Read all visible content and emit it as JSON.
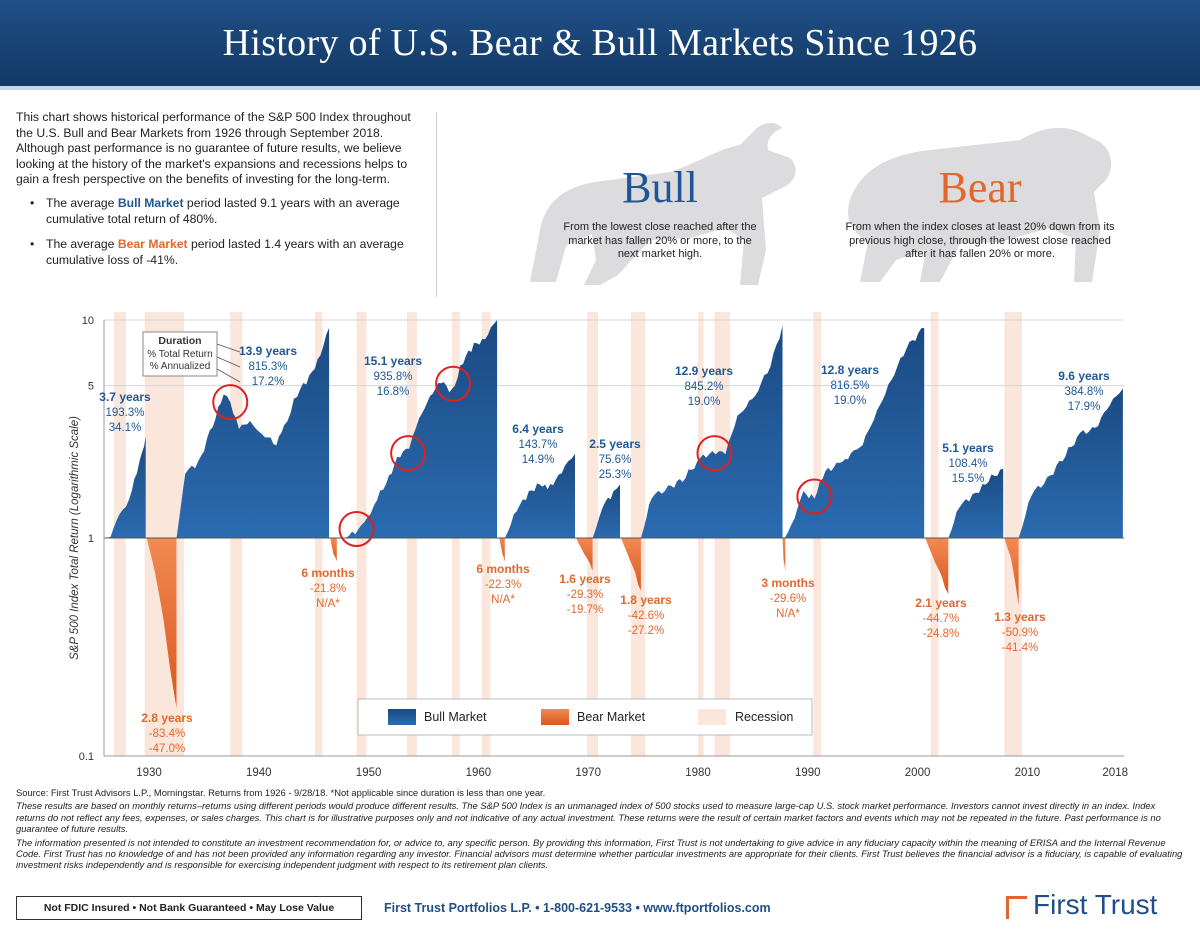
{
  "title": "History of U.S. Bear & Bull Markets Since 1926",
  "intro": {
    "paragraph": "This chart shows historical performance of the S&P 500 Index throughout the U.S. Bull and Bear Markets from 1926 through September 2018. Although past performance is no guarantee of future results, we believe looking at the history of the market's expansions and recessions helps to gain a fresh perspective on the benefits of investing for the long-term.",
    "bull_pre": "The average ",
    "bull_word": "Bull Market",
    "bull_post": " period lasted 9.1 years with an average cumulative total return of 480%.",
    "bear_pre": "The average ",
    "bear_word": "Bear Market",
    "bear_post": " period lasted 1.4 years with an average cumulative loss of -41%."
  },
  "bull_def": {
    "title": "Bull",
    "text": "From the lowest close reached after the market has fallen 20% or more, to the next market high."
  },
  "bear_def": {
    "title": "Bear",
    "text": "From when the index closes at least 20% down from its previous high close, through the lowest close reached after it has fallen 20% or more."
  },
  "colors": {
    "bull": "#1f5795",
    "bear": "#e2672d",
    "recession": "#fbe6dc",
    "header": "#1a4577",
    "grid": "#d6d6d6"
  },
  "chart_data": {
    "type": "area",
    "ylabel": "S&P 500 Index Total Return (Logarithmic Scale)",
    "yscale": "log",
    "yticks": [
      {
        "v": 10,
        "label": "10"
      },
      {
        "v": 5,
        "label": "5"
      },
      {
        "v": 1,
        "label": "1"
      },
      {
        "v": 0.1,
        "label": "0.1"
      }
    ],
    "xlim": [
      1925.9,
      2018.8
    ],
    "ylim": [
      0.1,
      10
    ],
    "xticks": [
      {
        "v": 1930,
        "label": "1930"
      },
      {
        "v": 1940,
        "label": "1940"
      },
      {
        "v": 1950,
        "label": "1950"
      },
      {
        "v": 1960,
        "label": "1960"
      },
      {
        "v": 1970,
        "label": "1970"
      },
      {
        "v": 1980,
        "label": "1980"
      },
      {
        "v": 1990,
        "label": "1990"
      },
      {
        "v": 2000,
        "label": "2000"
      },
      {
        "v": 2010,
        "label": "2010"
      },
      {
        "v": 2018,
        "label": "2018"
      }
    ],
    "recessions": [
      [
        1926.8,
        1927.9
      ],
      [
        1929.6,
        1933.2
      ],
      [
        1937.4,
        1938.5
      ],
      [
        1945.1,
        1945.8
      ],
      [
        1948.9,
        1949.8
      ],
      [
        1953.5,
        1954.4
      ],
      [
        1957.6,
        1958.3
      ],
      [
        1960.3,
        1961.1
      ],
      [
        1969.9,
        1970.9
      ],
      [
        1973.9,
        1975.2
      ],
      [
        1980.0,
        1980.5
      ],
      [
        1981.5,
        1982.9
      ],
      [
        1990.5,
        1991.2
      ],
      [
        2001.2,
        2001.9
      ],
      [
        2007.9,
        2009.5
      ]
    ],
    "key_label": "Duration",
    "key_lines": [
      "% Total Return",
      "% Annualized"
    ],
    "legend": {
      "bull": "Bull Market",
      "bear": "Bear Market",
      "recession": "Recession"
    },
    "bull_markets": [
      {
        "duration": "3.7 years",
        "total": "193.3%",
        "annualized": "34.1%",
        "points": [
          [
            1926.0,
            1.0
          ],
          [
            1926.5,
            1.03
          ],
          [
            1927.3,
            1.25
          ],
          [
            1928.2,
            1.55
          ],
          [
            1928.9,
            1.95
          ],
          [
            1929.4,
            2.5
          ],
          [
            1929.7,
            2.93
          ]
        ]
      },
      {
        "duration": "13.9 years",
        "total": "815.3%",
        "annualized": "17.2%",
        "points": [
          [
            1932.5,
            1.0
          ],
          [
            1933.3,
            2.0
          ],
          [
            1934.5,
            2.2
          ],
          [
            1935.8,
            3.3
          ],
          [
            1936.8,
            4.5
          ],
          [
            1937.4,
            4.2
          ],
          [
            1938.2,
            3.2
          ],
          [
            1939.2,
            3.4
          ],
          [
            1940.3,
            3.0
          ],
          [
            1941.6,
            2.7
          ],
          [
            1942.3,
            3.2
          ],
          [
            1943.5,
            4.6
          ],
          [
            1944.6,
            5.4
          ],
          [
            1945.6,
            7.0
          ],
          [
            1946.4,
            9.2
          ]
        ]
      },
      {
        "duration": "15.1 years",
        "total": "935.8%",
        "annualized": "16.8%",
        "points": [
          [
            1947.6,
            1.0
          ],
          [
            1948.8,
            1.06
          ],
          [
            1949.6,
            1.15
          ],
          [
            1950.5,
            1.45
          ],
          [
            1951.6,
            1.75
          ],
          [
            1952.6,
            2.35
          ],
          [
            1953.7,
            2.6
          ],
          [
            1954.6,
            3.5
          ],
          [
            1955.6,
            4.5
          ],
          [
            1956.6,
            5.2
          ],
          [
            1957.6,
            4.7
          ],
          [
            1958.6,
            6.5
          ],
          [
            1959.6,
            7.6
          ],
          [
            1960.6,
            8.3
          ],
          [
            1961.7,
            10.0
          ]
        ]
      },
      {
        "duration": "6.4 years",
        "total": "143.7%",
        "annualized": "14.9%",
        "points": [
          [
            1962.4,
            1.0
          ],
          [
            1963.5,
            1.35
          ],
          [
            1964.6,
            1.6
          ],
          [
            1965.6,
            1.8
          ],
          [
            1966.3,
            1.65
          ],
          [
            1967.3,
            1.95
          ],
          [
            1968.8,
            2.43
          ]
        ]
      },
      {
        "duration": "2.5 years",
        "total": "75.6%",
        "annualized": "25.3%",
        "points": [
          [
            1970.4,
            1.0
          ],
          [
            1971.3,
            1.4
          ],
          [
            1972.3,
            1.6
          ],
          [
            1972.9,
            1.76
          ]
        ]
      },
      {
        "duration": "12.9 years",
        "total": "845.2%",
        "annualized": "19.0%",
        "points": [
          [
            1974.8,
            1.0
          ],
          [
            1975.8,
            1.55
          ],
          [
            1977.3,
            1.7
          ],
          [
            1978.6,
            1.85
          ],
          [
            1980.2,
            2.3
          ],
          [
            1981.3,
            2.5
          ],
          [
            1982.5,
            2.45
          ],
          [
            1983.6,
            3.6
          ],
          [
            1985.2,
            4.5
          ],
          [
            1986.6,
            6.2
          ],
          [
            1987.7,
            9.45
          ]
        ]
      },
      {
        "duration": "12.8 years",
        "total": "816.5%",
        "annualized": "19.0%",
        "points": [
          [
            1987.9,
            1.0
          ],
          [
            1988.8,
            1.25
          ],
          [
            1989.6,
            1.6
          ],
          [
            1990.6,
            1.55
          ],
          [
            1991.6,
            2.0
          ],
          [
            1993.4,
            2.3
          ],
          [
            1995.0,
            2.7
          ],
          [
            1996.3,
            3.8
          ],
          [
            1997.6,
            5.3
          ],
          [
            1999.0,
            7.5
          ],
          [
            2000.6,
            9.2
          ]
        ]
      },
      {
        "duration": "5.1 years",
        "total": "108.4%",
        "annualized": "15.5%",
        "points": [
          [
            2002.8,
            1.0
          ],
          [
            2003.8,
            1.4
          ],
          [
            2005.0,
            1.55
          ],
          [
            2006.2,
            1.8
          ],
          [
            2007.8,
            2.08
          ]
        ]
      },
      {
        "duration": "9.6 years",
        "total": "384.8%",
        "annualized": "17.9%",
        "points": [
          [
            2009.2,
            1.0
          ],
          [
            2010.4,
            1.6
          ],
          [
            2011.8,
            1.85
          ],
          [
            2013.2,
            2.3
          ],
          [
            2014.8,
            3.0
          ],
          [
            2016.2,
            3.2
          ],
          [
            2017.5,
            4.1
          ],
          [
            2018.7,
            4.85
          ]
        ]
      }
    ],
    "bear_markets": [
      {
        "duration": "2.8 years",
        "total": "-83.4%",
        "annualized": "-47.0%",
        "points": [
          [
            1929.8,
            1.0
          ],
          [
            1930.5,
            0.72
          ],
          [
            1931.3,
            0.42
          ],
          [
            1931.9,
            0.26
          ],
          [
            1932.5,
            0.166
          ]
        ]
      },
      {
        "duration": "6 months",
        "total": "-21.8%",
        "annualized": "N/A*",
        "points": [
          [
            1946.5,
            1.0
          ],
          [
            1946.8,
            0.85
          ],
          [
            1947.1,
            0.782
          ]
        ]
      },
      {
        "duration": "6 months",
        "total": "-22.3%",
        "annualized": "N/A*",
        "points": [
          [
            1961.9,
            1.0
          ],
          [
            1962.2,
            0.85
          ],
          [
            1962.4,
            0.777
          ]
        ]
      },
      {
        "duration": "1.6 years",
        "total": "-29.3%",
        "annualized": "-19.7%",
        "points": [
          [
            1968.9,
            1.0
          ],
          [
            1969.6,
            0.86
          ],
          [
            1970.4,
            0.707
          ]
        ]
      },
      {
        "duration": "1.8 years",
        "total": "-42.6%",
        "annualized": "-27.2%",
        "points": [
          [
            1973.0,
            1.0
          ],
          [
            1973.8,
            0.8
          ],
          [
            1974.8,
            0.574
          ]
        ]
      },
      {
        "duration": "3 months",
        "total": "-29.6%",
        "annualized": "N/A*",
        "points": [
          [
            1987.7,
            1.0
          ],
          [
            1987.8,
            0.8
          ],
          [
            1987.95,
            0.704
          ]
        ]
      },
      {
        "duration": "2.1 years",
        "total": "-44.7%",
        "annualized": "-24.8%",
        "points": [
          [
            2000.7,
            1.0
          ],
          [
            2001.6,
            0.78
          ],
          [
            2002.8,
            0.553
          ]
        ]
      },
      {
        "duration": "1.3 years",
        "total": "-50.9%",
        "annualized": "-41.4%",
        "points": [
          [
            2007.9,
            1.0
          ],
          [
            2008.5,
            0.82
          ],
          [
            2009.2,
            0.491
          ]
        ]
      }
    ]
  },
  "source": {
    "line1": "Source: First Trust Advisors L.P., Morningstar. Returns from 1926 - 9/28/18. *Not applicable since duration is less than one year.",
    "line2": "These results are based on monthly returns–returns using different periods would produce different results. The S&P 500 Index is an unmanaged index of 500 stocks used to measure large-cap U.S. stock market performance. Investors cannot invest directly in an index. Index returns do not reflect any fees, expenses, or sales charges. This chart is for illustrative purposes only and not indicative of any actual investment. These returns were the result of certain market factors and events which may not be repeated in the future. Past performance is no guarantee of future results.",
    "line3": "The information presented is not intended to constitute an investment recommendation for, or advice to, any specific person. By providing this information, First Trust is not undertaking to give advice in any fiduciary capacity within the meaning of ERISA and the Internal Revenue Code. First Trust has no knowledge of and has not been provided any information regarding any investor. Financial advisors must determine whether particular investments are appropriate for their clients. First Trust believes the financial advisor is a fiduciary, is capable of evaluating investment risks independently and is responsible for exercising independent judgment with respect to its retirement plan clients."
  },
  "footer": {
    "disclaimer": "Not FDIC Insured • Not Bank Guaranteed • May Lose Value",
    "contact": "First Trust Portfolios L.P. • 1-800-621-9533 • www.ftportfolios.com",
    "logo": "First Trust"
  }
}
